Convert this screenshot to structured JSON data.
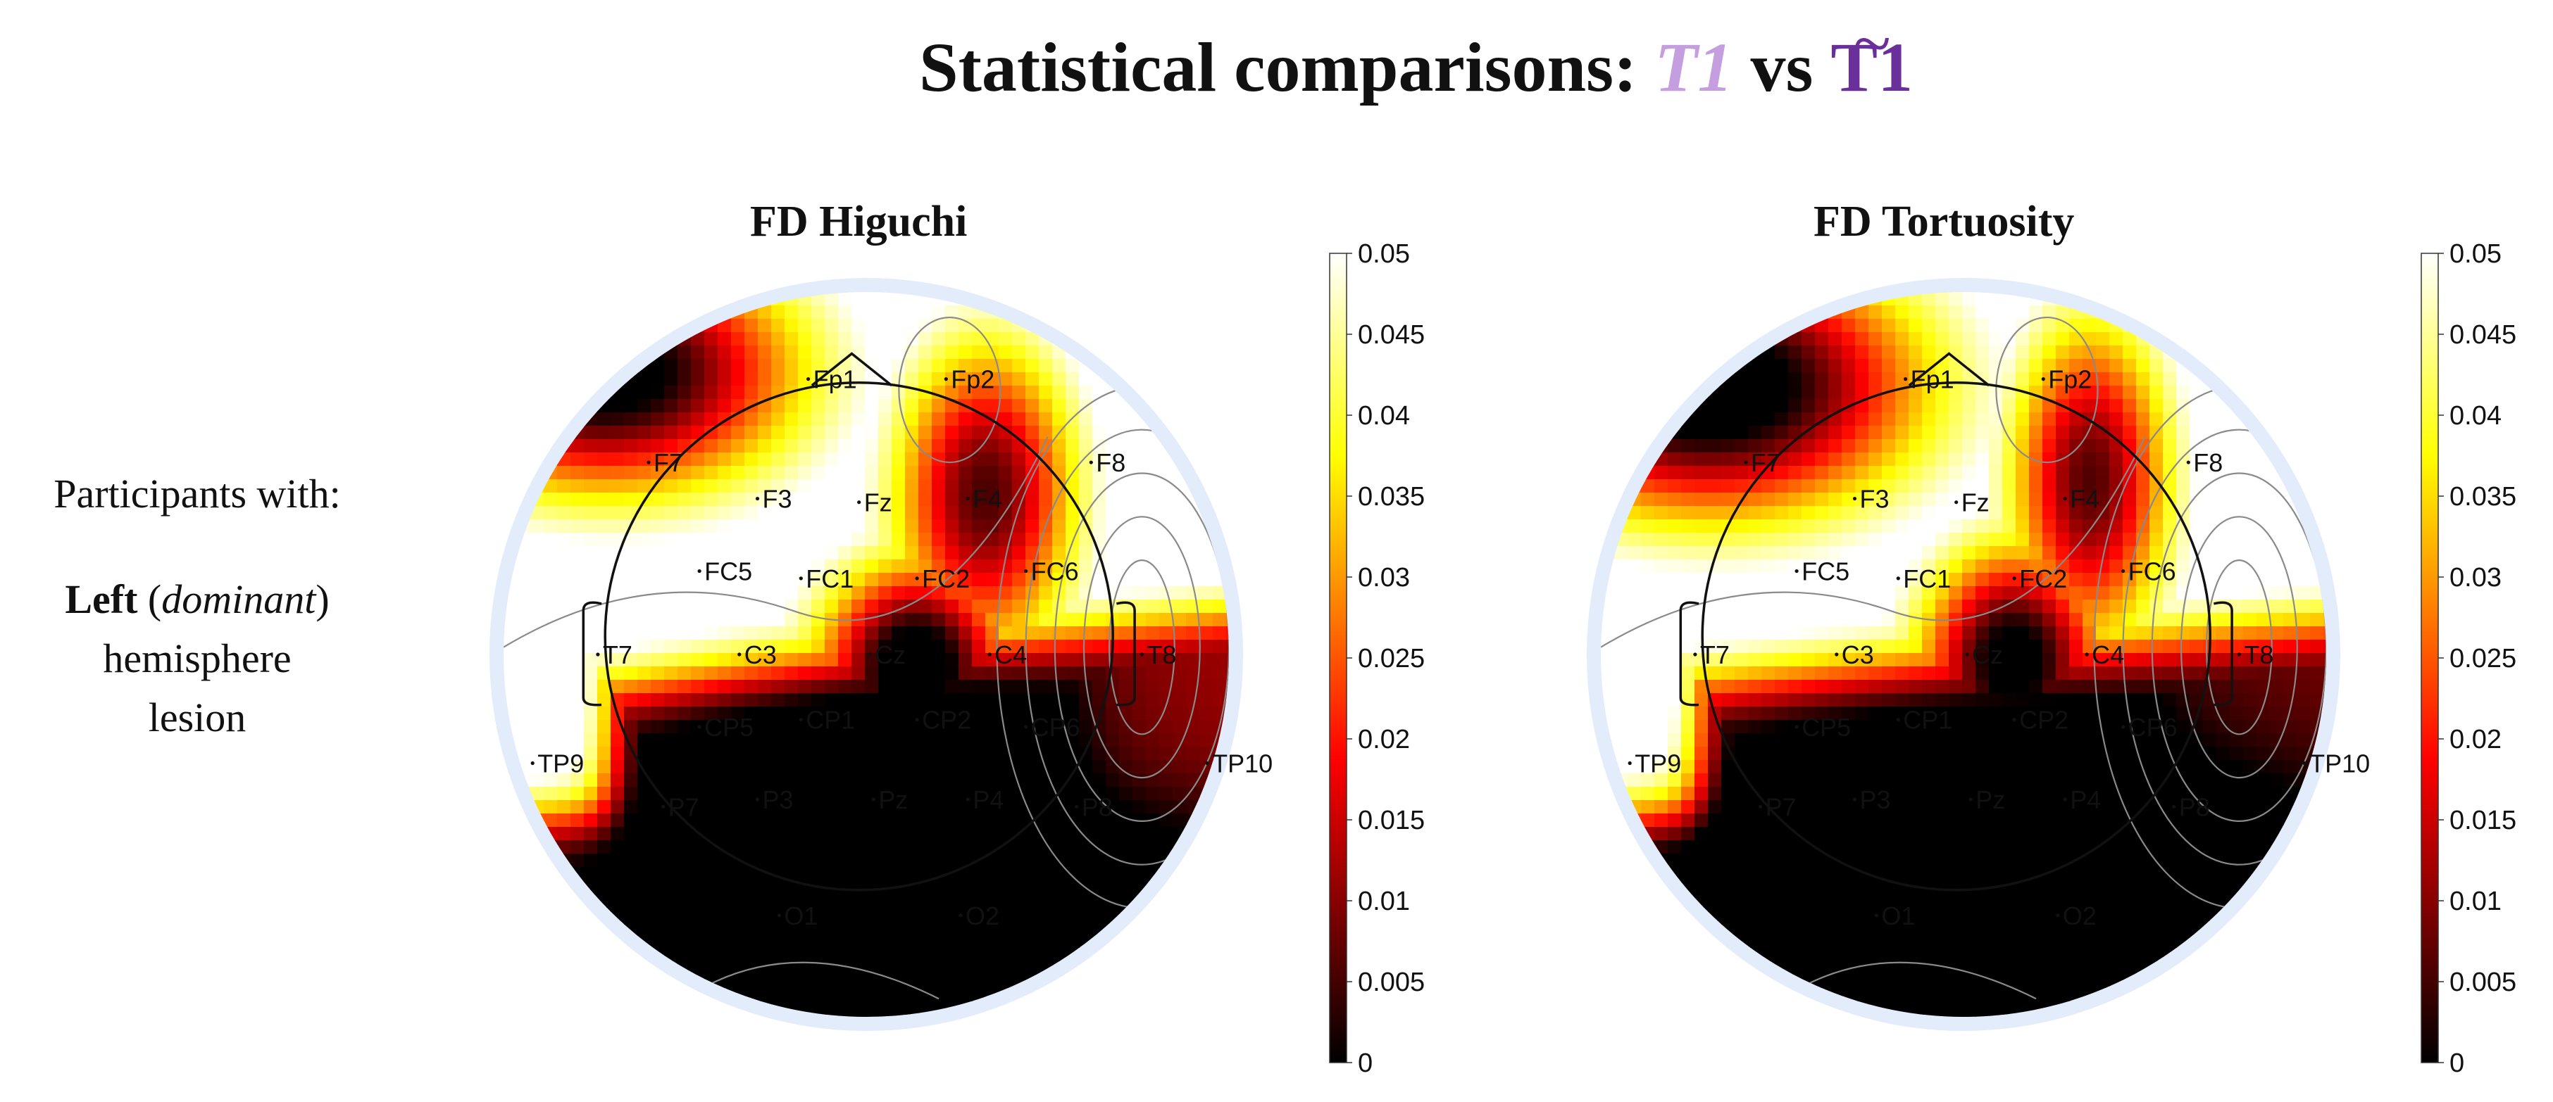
{
  "title": {
    "prefix": "Statistical comparisons:",
    "term1": "T1",
    "connector": "vs",
    "term2": "T1",
    "term2_tilde": "~",
    "colors": {
      "term1": "#c59ee0",
      "term2": "#6a2f9b"
    }
  },
  "side_label": {
    "line1": "Participants with:",
    "bold_word": "Left",
    "open_paren": "(",
    "italic_word": "dominant",
    "close_paren": ")",
    "line3": "hemisphere",
    "line4": "lesion"
  },
  "chart_data": [
    {
      "type": "heatmap",
      "title": "FD Higuchi",
      "colormap": "hot",
      "colorbar": {
        "min": 0,
        "max": 0.05,
        "ticks": [
          "0.05",
          "0.045",
          "0.04",
          "0.035",
          "0.03",
          "0.025",
          "0.02",
          "0.015",
          "0.01",
          "0.005",
          "0"
        ]
      },
      "electrodes": [
        "Fp1",
        "Fp2",
        "F7",
        "F3",
        "Fz",
        "F4",
        "F8",
        "FC5",
        "FC1",
        "FC2",
        "FC6",
        "T7",
        "C3",
        "Cz",
        "C4",
        "T8",
        "TP9",
        "CP5",
        "CP1",
        "CP2",
        "CP6",
        "TP10",
        "P7",
        "P3",
        "Pz",
        "P4",
        "P8",
        "O1",
        "O2"
      ]
    },
    {
      "type": "heatmap",
      "title": "FD Tortuosity",
      "colormap": "hot",
      "colorbar": {
        "min": 0,
        "max": 0.05,
        "ticks": [
          "0.05",
          "0.045",
          "0.04",
          "0.035",
          "0.03",
          "0.025",
          "0.02",
          "0.015",
          "0.01",
          "0.005",
          "0"
        ]
      },
      "electrodes": [
        "Fp1",
        "Fp2",
        "F7",
        "F3",
        "Fz",
        "F4",
        "F8",
        "FC5",
        "FC1",
        "FC2",
        "FC6",
        "T7",
        "C3",
        "Cz",
        "C4",
        "T8",
        "TP9",
        "CP5",
        "CP1",
        "CP2",
        "CP6",
        "TP10",
        "P7",
        "P3",
        "Pz",
        "P4",
        "P8",
        "O1",
        "O2"
      ]
    }
  ]
}
